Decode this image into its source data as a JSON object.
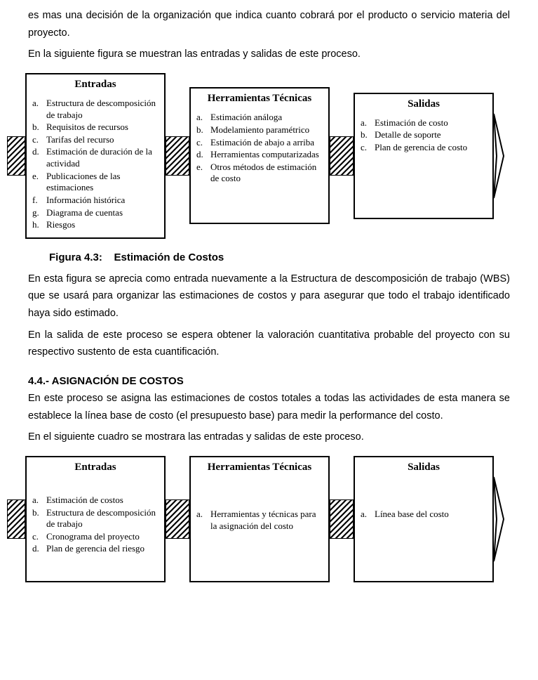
{
  "intro": {
    "p1": "es mas una decisión de la organización que indica cuanto cobrará por el producto o servicio materia del proyecto.",
    "p2": "En la siguiente figura se muestran las entradas y salidas de este proceso."
  },
  "fig1": {
    "boxes": {
      "entradas": {
        "title": "Entradas",
        "items": [
          {
            "l": "a.",
            "t": "Estructura de descomposición de trabajo"
          },
          {
            "l": "b.",
            "t": "Requisitos de recursos"
          },
          {
            "l": "c.",
            "t": "Tarifas del recurso"
          },
          {
            "l": "d.",
            "t": "Estimación de duración de la actividad"
          },
          {
            "l": "e.",
            "t": "Publicaciones de las estimaciones"
          },
          {
            "l": "f.",
            "t": "Información histórica"
          },
          {
            "l": "g.",
            "t": "Diagrama de cuentas"
          },
          {
            "l": "h.",
            "t": "Riesgos"
          }
        ]
      },
      "herramientas": {
        "title": "Herramientas Técnicas",
        "items": [
          {
            "l": "a.",
            "t": "Estimación análoga"
          },
          {
            "l": "b.",
            "t": "Modelamiento paramétrico"
          },
          {
            "l": "c.",
            "t": "Estimación de abajo a arriba"
          },
          {
            "l": "d.",
            "t": "Herramientas computarizadas"
          },
          {
            "l": "e.",
            "t": "Otros métodos de estimación de costo"
          }
        ]
      },
      "salidas": {
        "title": "Salidas",
        "items": [
          {
            "l": "a.",
            "t": "Estimación de costo"
          },
          {
            "l": "b.",
            "t": "Detalle de soporte"
          },
          {
            "l": "c.",
            "t": "Plan de gerencia de costo"
          }
        ]
      }
    },
    "caption_label": "Figura 4.3:",
    "caption_text": "Estimación de Costos"
  },
  "middle": {
    "p1": "En esta figura se aprecia como entrada nuevamente a la Estructura de descomposición de trabajo (WBS) que se usará para organizar las estimaciones de costos y para asegurar que todo el trabajo identificado haya sido estimado.",
    "p2": "En la salida de este proceso se espera obtener la valoración cuantitativa probable del proyecto con su respectivo sustento de esta cuantificación."
  },
  "section": {
    "heading": "4.4.- ASIGNACIÓN DE COSTOS",
    "p1": "En este proceso se asigna las estimaciones de costos totales a todas las actividades de esta manera se establece la línea base de costo (el presupuesto base) para medir la performance del costo.",
    "p2": "En el siguiente cuadro se mostrara las entradas y salidas de este proceso."
  },
  "fig2": {
    "boxes": {
      "entradas": {
        "title": "Entradas",
        "items": [
          {
            "l": "a.",
            "t": "Estimación de costos"
          },
          {
            "l": "b.",
            "t": "Estructura de descomposición de trabajo"
          },
          {
            "l": "c.",
            "t": "Cronograma del proyecto"
          },
          {
            "l": "d.",
            "t": "Plan de gerencia del riesgo"
          }
        ]
      },
      "herramientas": {
        "title": "Herramientas Técnicas",
        "items": [
          {
            "l": "a.",
            "t": "Herramientas y técnicas para la asignación del costo"
          }
        ]
      },
      "salidas": {
        "title": "Salidas",
        "items": [
          {
            "l": "a.",
            "t": "Línea base del costo"
          }
        ]
      }
    }
  },
  "layout": {
    "fig1": {
      "box_heights": {
        "entradas": 210,
        "herramientas": 195,
        "salidas": 180
      },
      "box_widths": {
        "entradas": 200,
        "herramientas": 200,
        "salidas": 200
      },
      "hatch_widths": [
        26,
        34,
        34,
        14
      ],
      "hatch_height": 56
    },
    "fig2": {
      "box_heights": {
        "entradas": 180,
        "herramientas": 180,
        "salidas": 180
      },
      "box_widths": {
        "entradas": 200,
        "herramientas": 200,
        "salidas": 200
      },
      "hatch_widths": [
        26,
        34,
        34,
        14
      ],
      "hatch_height": 56
    },
    "colors": {
      "line": "#000",
      "bg": "#fff"
    }
  }
}
